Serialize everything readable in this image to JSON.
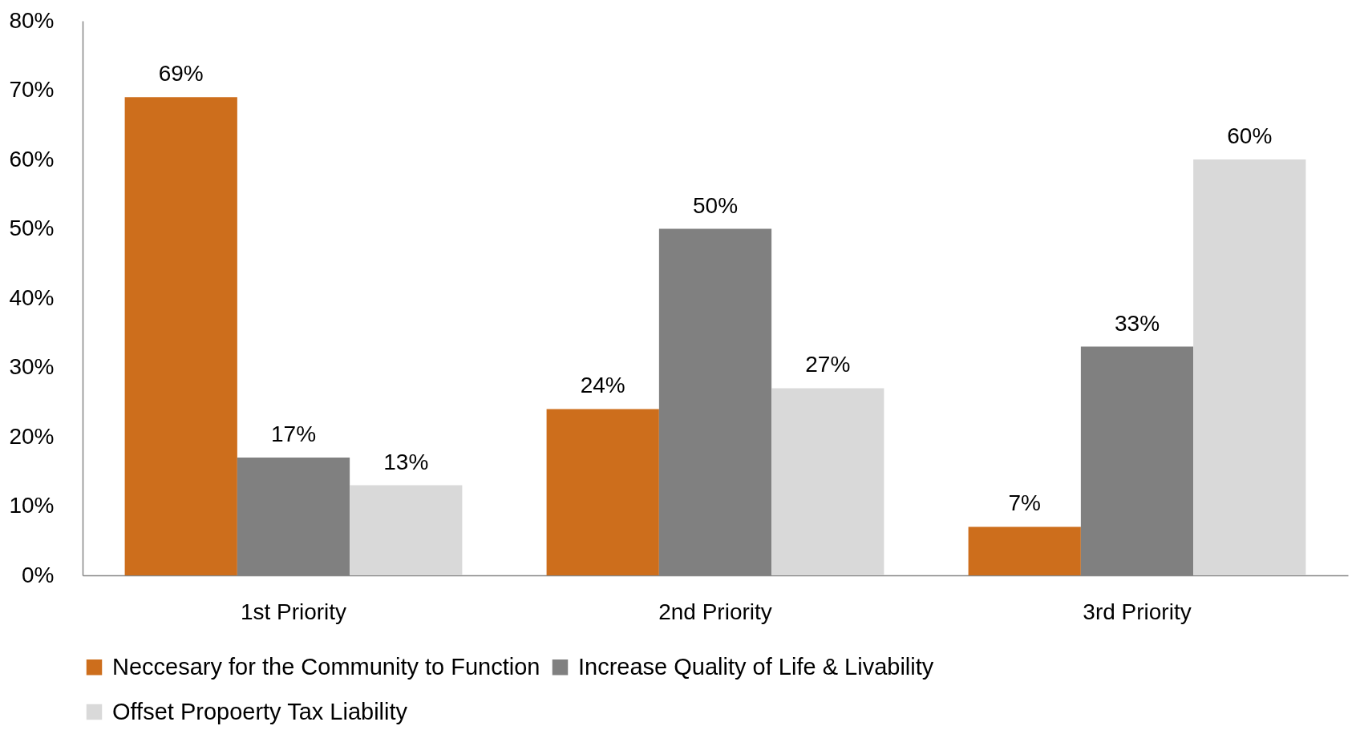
{
  "chart_data": {
    "type": "bar",
    "categories": [
      "1st Priority",
      "2nd Priority",
      "3rd Priority"
    ],
    "series": [
      {
        "name": "Neccesary for the Community to Function",
        "color": "#cd6e1c",
        "values": [
          69,
          24,
          7
        ],
        "value_labels": [
          "69%",
          "24%",
          "7%"
        ]
      },
      {
        "name": "Increase Quality of Life & Livability",
        "color": "#808080",
        "values": [
          17,
          50,
          33
        ],
        "value_labels": [
          "17%",
          "50%",
          "33%"
        ]
      },
      {
        "name": "Offset Propoerty Tax Liability",
        "color": "#d9d9d9",
        "values": [
          13,
          27,
          60
        ],
        "value_labels": [
          "13%",
          "27%",
          "60%"
        ]
      }
    ],
    "ylim": [
      0,
      80
    ],
    "yticks": [
      {
        "value": 0,
        "label": "0%"
      },
      {
        "value": 10,
        "label": "10%"
      },
      {
        "value": 20,
        "label": "20%"
      },
      {
        "value": 30,
        "label": "30%"
      },
      {
        "value": 40,
        "label": "40%"
      },
      {
        "value": 50,
        "label": "50%"
      },
      {
        "value": 60,
        "label": "60%"
      },
      {
        "value": 70,
        "label": "70%"
      },
      {
        "value": 80,
        "label": "80%"
      }
    ],
    "grid": false,
    "legend": "bottom"
  }
}
